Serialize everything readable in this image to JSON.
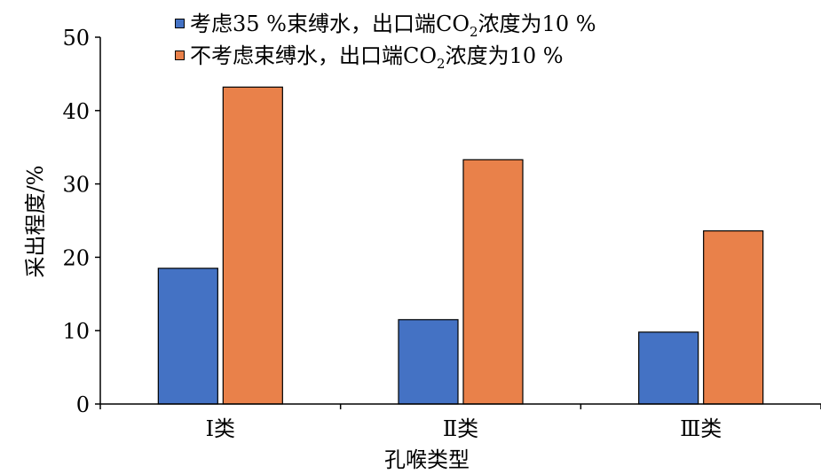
{
  "chart_data": {
    "type": "bar",
    "categories": [
      "Ⅰ类",
      "Ⅱ类",
      "Ⅲ类"
    ],
    "series": [
      {
        "name": "考虑35 %束缚水，出口端CO2浓度为10 %",
        "values": [
          18.5,
          11.5,
          9.8
        ],
        "color": "#4472c4"
      },
      {
        "name": "不考虑束缚水，出口端CO2浓度为10 %",
        "values": [
          43.2,
          33.3,
          23.6
        ],
        "color": "#e9814a"
      }
    ],
    "xlabel": "孔喉类型",
    "ylabel": "采出程度/%",
    "ylim": [
      0,
      50
    ],
    "yticks": [
      0,
      10,
      20,
      30,
      40,
      50
    ],
    "grid": false,
    "legend_position": "top"
  },
  "legend": [
    {
      "prefix": "考虑35 %束缚水，出口端CO",
      "sub": "2",
      "suffix": "浓度为10 %"
    },
    {
      "prefix": "不考虑束缚水，出口端CO",
      "sub": "2",
      "suffix": "浓度为10 %"
    }
  ]
}
